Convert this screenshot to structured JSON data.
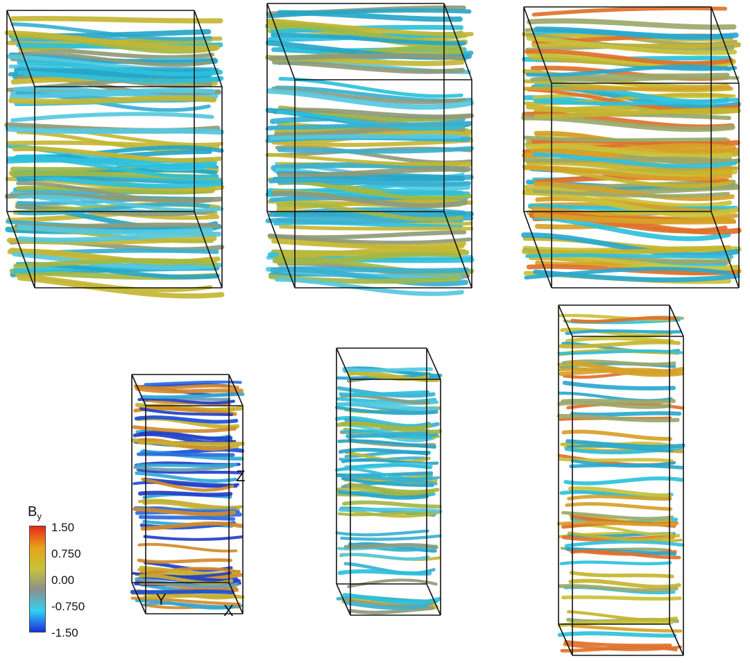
{
  "figure": {
    "panels": [
      {
        "id": "top-left",
        "dominant": "cyan"
      },
      {
        "id": "top-middle",
        "dominant": "cyan"
      },
      {
        "id": "top-right",
        "dominant": "mixed"
      },
      {
        "id": "bottom-left",
        "dominant": "blue"
      },
      {
        "id": "bottom-middle",
        "dominant": "cyan"
      },
      {
        "id": "bottom-right",
        "dominant": "mixed"
      }
    ],
    "axes": {
      "y": "Y",
      "x": "X",
      "z": "Z"
    }
  },
  "colorbar": {
    "title_main": "B",
    "title_sub": "y",
    "ticks": [
      "1.50",
      "0.750",
      "0.00",
      "-0.750",
      "-1.50"
    ],
    "colors": [
      "#e8261a",
      "#e8a318",
      "#c8c23a",
      "#8f8f8f",
      "#2fd3f0",
      "#1a2fe0"
    ]
  }
}
